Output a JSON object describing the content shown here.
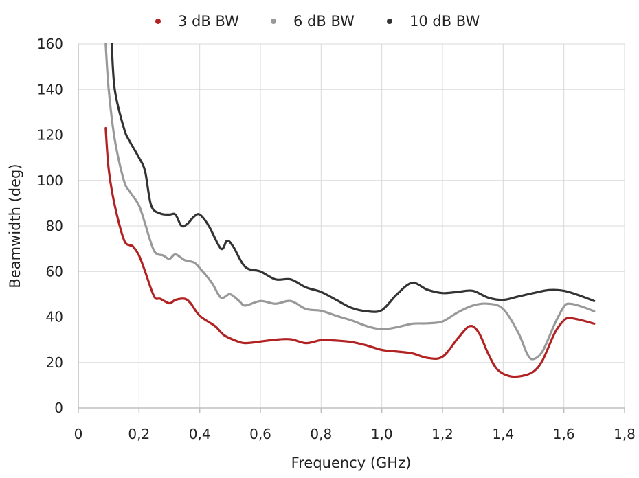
{
  "chart_data": {
    "type": "line",
    "title": "",
    "xlabel": "Frequency (GHz)",
    "ylabel": "Beamwidth (deg)",
    "xlim": [
      0,
      1.8
    ],
    "ylim": [
      0,
      160
    ],
    "x_ticks": [
      "0",
      "0,2",
      "0,4",
      "0,6",
      "0,8",
      "1,0",
      "1,2",
      "1,4",
      "1,6",
      "1,8"
    ],
    "x_tick_values": [
      0,
      0.2,
      0.4,
      0.6,
      0.8,
      1.0,
      1.2,
      1.4,
      1.6,
      1.8
    ],
    "y_ticks": [
      "0",
      "20",
      "40",
      "60",
      "80",
      "100",
      "120",
      "140",
      "160"
    ],
    "y_tick_values": [
      0,
      20,
      40,
      60,
      80,
      100,
      120,
      140,
      160
    ],
    "grid": true,
    "legend_position": "top-center",
    "series": [
      {
        "name": "3 dB BW",
        "color": "#b22222",
        "points": [
          [
            0.09,
            123
          ],
          [
            0.1,
            105
          ],
          [
            0.12,
            89
          ],
          [
            0.15,
            74
          ],
          [
            0.17,
            71.5
          ],
          [
            0.18,
            71
          ],
          [
            0.2,
            67
          ],
          [
            0.22,
            60
          ],
          [
            0.25,
            49
          ],
          [
            0.27,
            48
          ],
          [
            0.3,
            46
          ],
          [
            0.32,
            47.5
          ],
          [
            0.35,
            48
          ],
          [
            0.37,
            46
          ],
          [
            0.4,
            40.5
          ],
          [
            0.45,
            36
          ],
          [
            0.48,
            32
          ],
          [
            0.52,
            29.5
          ],
          [
            0.55,
            28.5
          ],
          [
            0.6,
            29.2
          ],
          [
            0.65,
            30
          ],
          [
            0.7,
            30.2
          ],
          [
            0.75,
            28.5
          ],
          [
            0.8,
            29.8
          ],
          [
            0.85,
            29.6
          ],
          [
            0.9,
            29
          ],
          [
            0.95,
            27.5
          ],
          [
            1.0,
            25.5
          ],
          [
            1.05,
            24.8
          ],
          [
            1.1,
            24
          ],
          [
            1.15,
            22
          ],
          [
            1.2,
            22.5
          ],
          [
            1.25,
            30.5
          ],
          [
            1.29,
            36
          ],
          [
            1.32,
            33
          ],
          [
            1.35,
            24
          ],
          [
            1.38,
            17
          ],
          [
            1.42,
            14
          ],
          [
            1.46,
            14
          ],
          [
            1.5,
            16
          ],
          [
            1.53,
            21
          ],
          [
            1.57,
            33
          ],
          [
            1.6,
            38.5
          ],
          [
            1.62,
            39.5
          ],
          [
            1.66,
            38.5
          ],
          [
            1.7,
            37
          ]
        ]
      },
      {
        "name": "6 dB BW",
        "color": "#999999",
        "points": [
          [
            0.09,
            160
          ],
          [
            0.1,
            140
          ],
          [
            0.12,
            118
          ],
          [
            0.15,
            100
          ],
          [
            0.17,
            95
          ],
          [
            0.2,
            89
          ],
          [
            0.22,
            81
          ],
          [
            0.25,
            69
          ],
          [
            0.28,
            67
          ],
          [
            0.3,
            65.5
          ],
          [
            0.32,
            67.5
          ],
          [
            0.35,
            65
          ],
          [
            0.38,
            64
          ],
          [
            0.4,
            61.5
          ],
          [
            0.44,
            55
          ],
          [
            0.47,
            48.5
          ],
          [
            0.5,
            50
          ],
          [
            0.53,
            47
          ],
          [
            0.55,
            45
          ],
          [
            0.6,
            47
          ],
          [
            0.65,
            45.8
          ],
          [
            0.7,
            47
          ],
          [
            0.75,
            43.5
          ],
          [
            0.8,
            42.7
          ],
          [
            0.85,
            40.5
          ],
          [
            0.9,
            38.5
          ],
          [
            0.95,
            36
          ],
          [
            1.0,
            34.6
          ],
          [
            1.05,
            35.5
          ],
          [
            1.1,
            37
          ],
          [
            1.15,
            37.2
          ],
          [
            1.2,
            38
          ],
          [
            1.25,
            42
          ],
          [
            1.3,
            45
          ],
          [
            1.35,
            45.8
          ],
          [
            1.4,
            43.5
          ],
          [
            1.45,
            33
          ],
          [
            1.48,
            23.5
          ],
          [
            1.5,
            21.5
          ],
          [
            1.53,
            25
          ],
          [
            1.57,
            37
          ],
          [
            1.6,
            44.5
          ],
          [
            1.62,
            45.8
          ],
          [
            1.66,
            44.5
          ],
          [
            1.7,
            42.5
          ]
        ]
      },
      {
        "name": "10 dB BW",
        "color": "#333333",
        "points": [
          [
            0.11,
            160
          ],
          [
            0.12,
            140
          ],
          [
            0.15,
            123
          ],
          [
            0.17,
            117
          ],
          [
            0.2,
            110
          ],
          [
            0.22,
            104
          ],
          [
            0.24,
            89
          ],
          [
            0.27,
            85.5
          ],
          [
            0.3,
            85
          ],
          [
            0.32,
            85
          ],
          [
            0.34,
            80
          ],
          [
            0.36,
            81
          ],
          [
            0.38,
            84
          ],
          [
            0.4,
            85
          ],
          [
            0.43,
            80
          ],
          [
            0.47,
            70
          ],
          [
            0.49,
            73.5
          ],
          [
            0.51,
            71
          ],
          [
            0.55,
            62
          ],
          [
            0.6,
            60
          ],
          [
            0.65,
            56.5
          ],
          [
            0.7,
            56.5
          ],
          [
            0.75,
            53
          ],
          [
            0.8,
            51
          ],
          [
            0.85,
            47.5
          ],
          [
            0.9,
            44
          ],
          [
            0.95,
            42.5
          ],
          [
            1.0,
            43
          ],
          [
            1.05,
            50
          ],
          [
            1.1,
            55
          ],
          [
            1.15,
            52
          ],
          [
            1.2,
            50.5
          ],
          [
            1.25,
            51
          ],
          [
            1.3,
            51.5
          ],
          [
            1.35,
            48.5
          ],
          [
            1.4,
            47.5
          ],
          [
            1.45,
            49
          ],
          [
            1.5,
            50.5
          ],
          [
            1.55,
            51.8
          ],
          [
            1.6,
            51.5
          ],
          [
            1.65,
            49.5
          ],
          [
            1.7,
            47
          ]
        ]
      }
    ]
  }
}
